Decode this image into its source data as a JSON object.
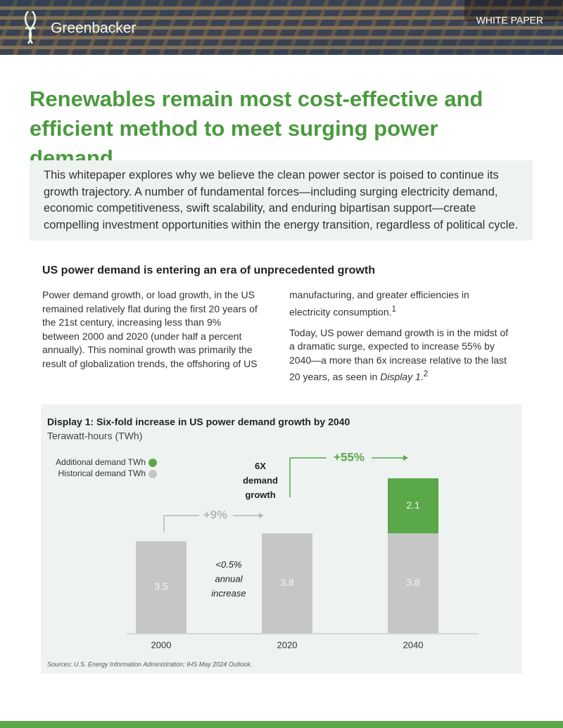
{
  "header": {
    "logo": "Greenbacker",
    "label": "WHITE PAPER"
  },
  "title": "Renewables remain most cost-effective and efficient method to meet surging power demand",
  "intro": "This whitepaper explores why we believe the clean power sector is poised to continue its growth trajectory. A number of fundamental forces—including surging electricity demand, economic competitiveness, swift scalability, and enduring bipartisan support—create compelling investment opportunities within the energy transition, regardless of political cycle.",
  "section": {
    "heading": "US power demand is entering an era of unprecedented growth",
    "paragraphs": [
      {
        "text": "Power demand growth, or load growth, in the US remained relatively flat during the first 20 years of the 21st century, increasing less than 9% between 2000 and 2020 (under half a percent annually). This nominal growth was primarily the result of globalization trends, the offshoring of US manufacturing, and greater efficiencies in electricity consumption.",
        "note": "1"
      },
      {
        "text": "Today, US power demand growth is in the midst of a dramatic surge, expected to increase 55% by 2040—a more than 6x increase relative to the last 20 years, as seen in ",
        "emphasis": "Display 1",
        "end": ".",
        "note": "2"
      }
    ]
  },
  "chart_data": {
    "type": "bar",
    "stacked": true,
    "title": "Display 1: Six-fold increase in US power demand growth by 2040",
    "subtitle": "Terawatt-hours (TWh)",
    "categories": [
      "2000",
      "2020",
      "2040"
    ],
    "series": [
      {
        "name": "Historical demand TWh",
        "color": "#c6c6c6",
        "values": [
          3.5,
          3.8,
          3.8
        ]
      },
      {
        "name": "Additional demand TWh",
        "color": "#5ba84a",
        "values": [
          null,
          null,
          2.1
        ]
      }
    ],
    "annotations": [
      {
        "text": "+9%"
      },
      {
        "text": "+55%"
      },
      {
        "text": "6X demand growth"
      },
      {
        "text": "<0.5% annual increase"
      }
    ],
    "source": "Sources: U.S. Energy Information Administration; IHS May 2024 Outlook."
  }
}
